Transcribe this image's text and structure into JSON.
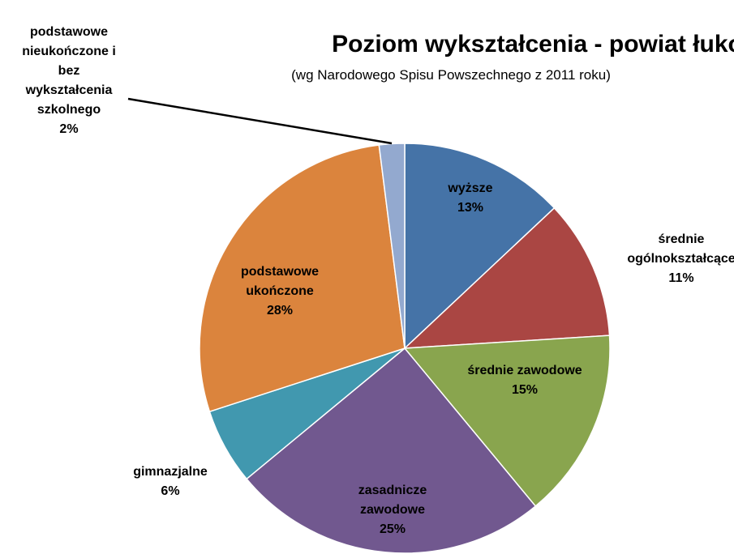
{
  "chart_data": {
    "type": "pie",
    "title": "Poziom wykształcenia - powiat łukowski",
    "subtitle": "(wg Narodowego Spisu Powszechnego z 2011 roku)",
    "categories": [
      "wyższe",
      "średnie\nogólnokształcące",
      "średnie zawodowe",
      "zasadnicze\nzawodowe",
      "gimnazjalne",
      "podstawowe\nukończone",
      "podstawowe\nnieukończone i\nbez\nwykształcenia\nszkolnego"
    ],
    "values": [
      13,
      11,
      15,
      25,
      6,
      28,
      2
    ],
    "value_labels": [
      "13%",
      "11%",
      "15%",
      "25%",
      "6%",
      "28%",
      "2%"
    ],
    "colors": [
      "#4573a7",
      "#aa4643",
      "#89a54e",
      "#71588f",
      "#4198af",
      "#db843d",
      "#93a9cf"
    ]
  }
}
